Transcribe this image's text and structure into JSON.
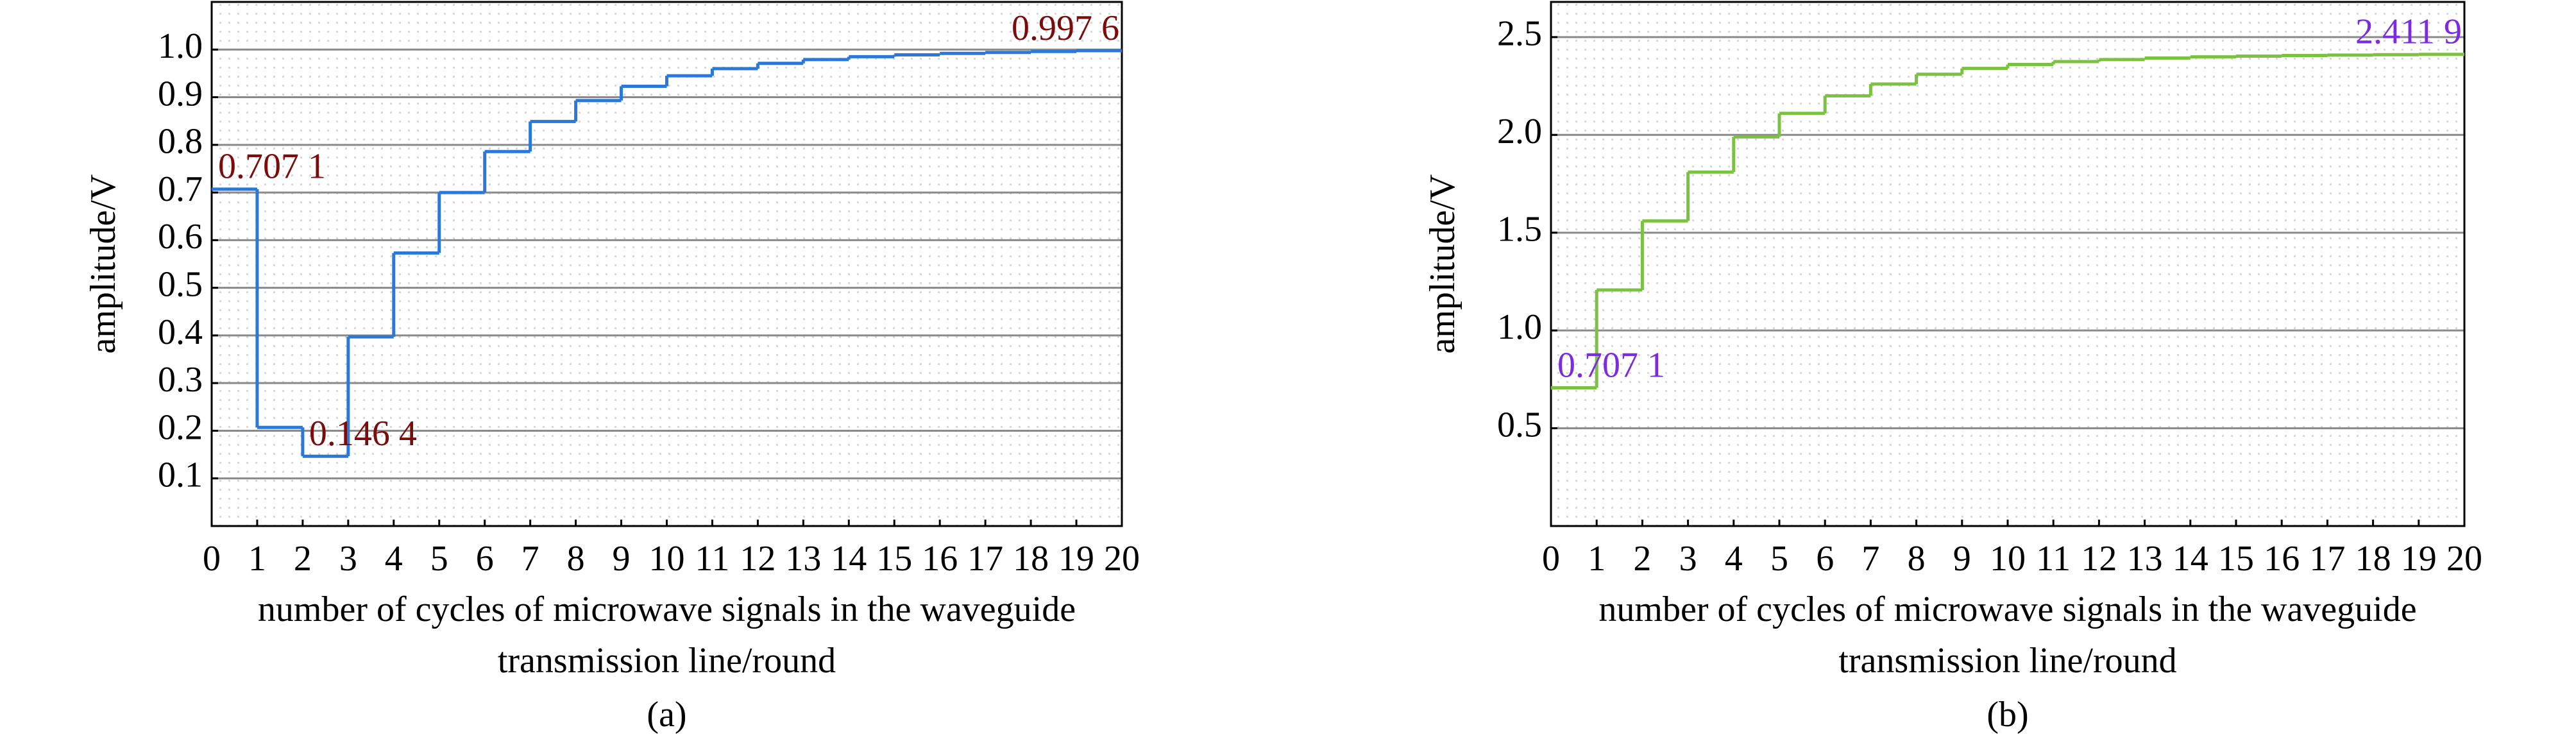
{
  "chart_data": [
    {
      "type": "step",
      "caption": "(a)",
      "ylabel": "amplitude/V",
      "xlabel": [
        "number of cycles of microwave signals in the waveguide",
        "transmission line/round"
      ],
      "x": [
        0,
        1,
        2,
        3,
        4,
        5,
        6,
        7,
        8,
        9,
        10,
        11,
        12,
        13,
        14,
        15,
        16,
        17,
        18,
        19,
        20
      ],
      "series": [
        {
          "color": "#2b78d8",
          "values": [
            0.7071,
            0.207,
            0.1464,
            0.397,
            0.573,
            0.7,
            0.786,
            0.849,
            0.893,
            0.923,
            0.945,
            0.96,
            0.971,
            0.979,
            0.985,
            0.989,
            0.992,
            0.994,
            0.996,
            0.9976,
            0.9976
          ],
          "value_labels": [
            "0.707 1",
            null,
            "0.146 4",
            null,
            null,
            null,
            null,
            null,
            null,
            null,
            null,
            null,
            null,
            null,
            null,
            null,
            null,
            null,
            null,
            null,
            "0.997 6"
          ],
          "label_color": "#7a0c0c"
        }
      ],
      "xlim": [
        0,
        20
      ],
      "xticks": [
        0,
        1,
        2,
        3,
        4,
        5,
        6,
        7,
        8,
        9,
        10,
        11,
        12,
        13,
        14,
        15,
        16,
        17,
        18,
        19,
        20
      ],
      "ylim": [
        0,
        1.1
      ],
      "yticks": [
        0.1,
        0.2,
        0.3,
        0.4,
        0.5,
        0.6,
        0.7,
        0.8,
        0.9,
        {
          "value": 1,
          "label": "1.0"
        }
      ],
      "grid": true
    },
    {
      "type": "step",
      "caption": "(b)",
      "ylabel": "amplitude/V",
      "xlabel": [
        "number of cycles of microwave signals in the waveguide",
        "transmission line/round"
      ],
      "x": [
        0,
        1,
        2,
        3,
        4,
        5,
        6,
        7,
        8,
        9,
        10,
        11,
        12,
        13,
        14,
        15,
        16,
        17,
        18,
        19,
        20
      ],
      "series": [
        {
          "color": "#7cc242",
          "values": [
            0.7071,
            1.207,
            1.56,
            1.81,
            1.99,
            2.11,
            2.2,
            2.26,
            2.31,
            2.34,
            2.36,
            2.375,
            2.385,
            2.393,
            2.399,
            2.403,
            2.406,
            2.408,
            2.41,
            2.4119,
            2.4119
          ],
          "value_labels": [
            "0.707 1",
            null,
            null,
            null,
            null,
            null,
            null,
            null,
            null,
            null,
            null,
            null,
            null,
            null,
            null,
            null,
            null,
            null,
            null,
            null,
            "2.411 9"
          ],
          "label_color": "#7b2be0"
        }
      ],
      "xlim": [
        0,
        20
      ],
      "xticks": [
        0,
        1,
        2,
        3,
        4,
        5,
        6,
        7,
        8,
        9,
        10,
        11,
        12,
        13,
        14,
        15,
        16,
        17,
        18,
        19,
        20
      ],
      "ylim": [
        0,
        2.68
      ],
      "yticks": [
        0.5,
        {
          "value": 1,
          "label": "1.0"
        },
        1.5,
        {
          "value": 2,
          "label": "2.0"
        },
        2.5
      ],
      "grid": true
    }
  ]
}
